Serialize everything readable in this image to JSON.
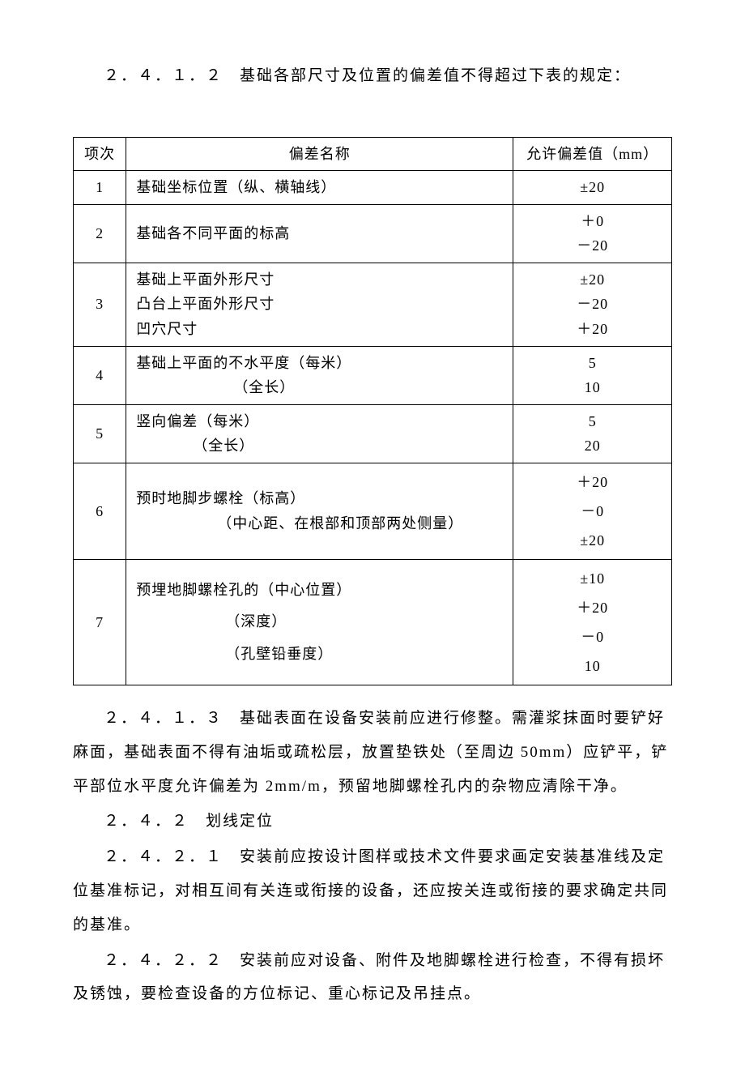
{
  "document": {
    "top_text": "２．４．１．２　基础各部尺寸及位置的偏差值不得超过下表的规定：",
    "table": {
      "header": {
        "col1": "项次",
        "col2": "偏差名称",
        "col3": "允许偏差值（mm）"
      },
      "row1": {
        "index": "1",
        "name": "基础坐标位置（纵、横轴线）",
        "value": "±20"
      },
      "row2": {
        "index": "2",
        "name": "基础各不同平面的标高",
        "value": "＋0\n－20"
      },
      "row3": {
        "index": "3",
        "name": "基础上平面外形尺寸\n凸台上平面外形尺寸\n凹穴尺寸",
        "value": "±20\n－20\n＋20"
      },
      "row4": {
        "index": "4",
        "name_a": "基础上平面的不水平度（每米）",
        "name_b": "（全长）",
        "value": "5\n10"
      },
      "row5": {
        "index": "5",
        "name_a": "竖向偏差（每米）",
        "name_b": "（全长）",
        "value": "5\n20"
      },
      "row6": {
        "index": "6",
        "name_a": "预时地脚步螺栓（标高）",
        "name_b": "（中心距、在根部和顶部两处侧量）",
        "value": "＋20\n－0\n±20"
      },
      "row7": {
        "index": "7",
        "name_a": "预埋地脚螺栓孔的（中心位置）",
        "name_b": "（深度）",
        "name_c": "（孔壁铅垂度）",
        "value": "±10\n＋20\n－0\n10"
      }
    },
    "para1": "２．４．１．３　基础表面在设备安装前应进行修整。需灌浆抹面时要铲好麻面，基础表面不得有油垢或疏松层，放置垫铁处（至周边 50mm）应铲平，铲平部位水平度允许偏差为 2mm/m，预留地脚螺栓孔内的杂物应清除干净。",
    "para2": "２．４．２　划线定位",
    "para3": "２．４．２．１　安装前应按设计图样或技术文件要求画定安装基准线及定位基准标记，对相互间有关连或衔接的设备，还应按关连或衔接的要求确定共同的基准。",
    "para4": "２．４．２．２　安装前应对设备、附件及地脚螺栓进行检查，不得有损坏及锈蚀，要检查设备的方位标记、重心标记及吊挂点。"
  },
  "styles": {
    "background_color": "#ffffff",
    "text_color": "#000000",
    "border_color": "#000000",
    "body_fontsize": 19,
    "table_fontsize": 18
  }
}
